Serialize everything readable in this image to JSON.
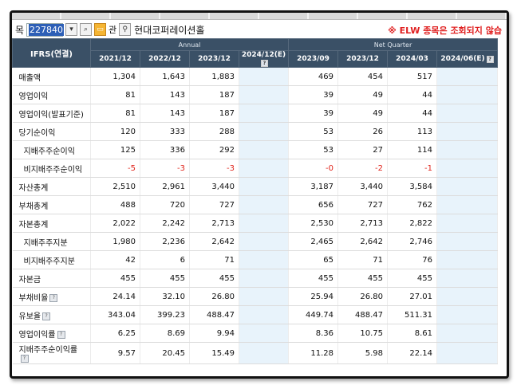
{
  "toolbar": {
    "label": "목",
    "stock_code": "227840",
    "dropdown_icon": "chevron-down-icon",
    "search_icon": "magnifier-icon",
    "folder_icon": "folder-icon",
    "btn_text": "관",
    "company_name": "현대코퍼레이션홀",
    "elw_note": "※ ELW 종목은 조회되지 않습"
  },
  "table": {
    "corner_label": "IFRS(연결)",
    "groups": [
      {
        "label": "Annual"
      },
      {
        "label": "Net Quarter"
      }
    ],
    "columns": [
      "2021/12",
      "2022/12",
      "2023/12",
      "2024/12(E)",
      "2023/09",
      "2023/12",
      "2024/03",
      "2024/06(E)"
    ],
    "rows": [
      {
        "label": "매출액",
        "values": [
          "1,304",
          "1,643",
          "1,883",
          "",
          "469",
          "454",
          "517",
          ""
        ]
      },
      {
        "label": "영업이익",
        "values": [
          "81",
          "143",
          "187",
          "",
          "39",
          "49",
          "44",
          ""
        ]
      },
      {
        "label": "영업이익(발표기준)",
        "values": [
          "81",
          "143",
          "187",
          "",
          "39",
          "49",
          "44",
          ""
        ]
      },
      {
        "label": "당기순이익",
        "values": [
          "120",
          "333",
          "288",
          "",
          "53",
          "26",
          "113",
          ""
        ]
      },
      {
        "label": "지배주주순이익",
        "values": [
          "125",
          "336",
          "292",
          "",
          "53",
          "27",
          "114",
          ""
        ],
        "sub": true
      },
      {
        "label": "비지배주주순이익",
        "values": [
          "-5",
          "-3",
          "-3",
          "",
          "-0",
          "-2",
          "-1",
          ""
        ],
        "sub": true
      },
      {
        "label": "자산총계",
        "values": [
          "2,510",
          "2,961",
          "3,440",
          "",
          "3,187",
          "3,440",
          "3,584",
          ""
        ]
      },
      {
        "label": "부채총계",
        "values": [
          "488",
          "720",
          "727",
          "",
          "656",
          "727",
          "762",
          ""
        ]
      },
      {
        "label": "자본총계",
        "values": [
          "2,022",
          "2,242",
          "2,713",
          "",
          "2,530",
          "2,713",
          "2,822",
          ""
        ]
      },
      {
        "label": "지배주주지분",
        "values": [
          "1,980",
          "2,236",
          "2,642",
          "",
          "2,465",
          "2,642",
          "2,746",
          ""
        ],
        "sub": true
      },
      {
        "label": "비지배주주지분",
        "values": [
          "42",
          "6",
          "71",
          "",
          "65",
          "71",
          "76",
          ""
        ],
        "sub": true
      },
      {
        "label": "자본금",
        "values": [
          "455",
          "455",
          "455",
          "",
          "455",
          "455",
          "455",
          ""
        ]
      },
      {
        "label": "부채비율",
        "values": [
          "24.14",
          "32.10",
          "26.80",
          "",
          "25.94",
          "26.80",
          "27.01",
          ""
        ],
        "info": true
      },
      {
        "label": "유보율",
        "values": [
          "343.04",
          "399.23",
          "488.47",
          "",
          "449.74",
          "488.47",
          "511.31",
          ""
        ],
        "info": true
      },
      {
        "label": "영업이익률",
        "values": [
          "6.25",
          "8.69",
          "9.94",
          "",
          "8.36",
          "10.75",
          "8.61",
          ""
        ],
        "info": true
      },
      {
        "label": "지배주주순이익률",
        "values": [
          "9.57",
          "20.45",
          "15.49",
          "",
          "11.28",
          "5.98",
          "22.14",
          ""
        ],
        "info": true
      }
    ]
  },
  "colors": {
    "header_bg": "#3a5066",
    "estimate_bg": "#e8f3fb",
    "negative": "#e0241b",
    "warning": "#e02020"
  }
}
